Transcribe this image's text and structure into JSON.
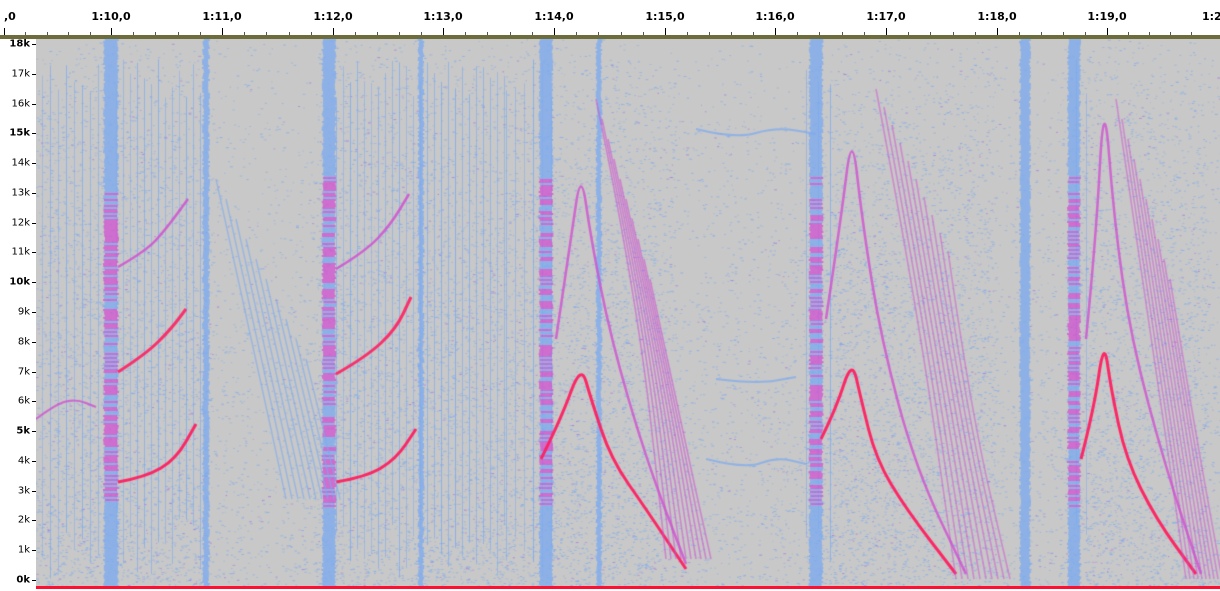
{
  "timeline": {
    "labels": [
      ",0",
      "1:10,0",
      "1:11,0",
      "1:12,0",
      "1:13,0",
      "1:14,0",
      "1:15,0",
      "1:16,0",
      "1:17,0",
      "1:18,0",
      "1:19,0",
      "1:2"
    ]
  },
  "frequency_ruler": {
    "labels": [
      "18k",
      "17k",
      "16k",
      "15k",
      "14k",
      "13k",
      "12k",
      "11k",
      "10k",
      "9k",
      "8k",
      "7k",
      "6k",
      "5k",
      "4k",
      "3k",
      "2k",
      "1k",
      "0k"
    ],
    "major_labels": [
      "18k",
      "15k",
      "10k",
      "5k",
      "0k"
    ]
  },
  "spectrogram": {
    "colors": {
      "background": "#c8c8c8",
      "low": "#7aaaf0",
      "mid": "#d050d0",
      "high": "#ff2060"
    }
  }
}
